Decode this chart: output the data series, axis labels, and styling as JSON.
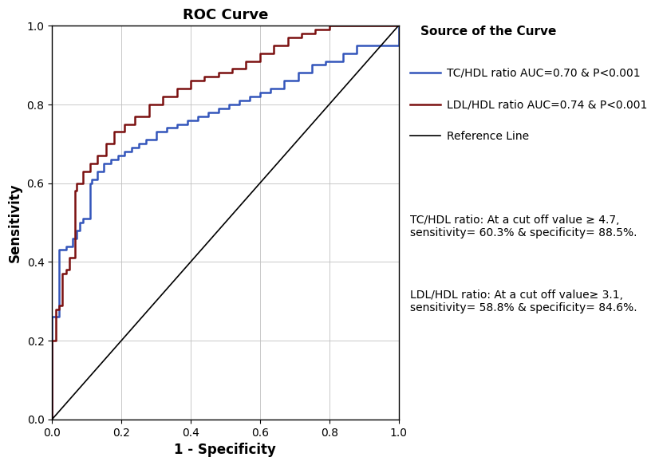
{
  "title": "ROC Curve",
  "xlabel": "1 - Specificity",
  "ylabel": "Sensitivity",
  "title_fontsize": 13,
  "axis_label_fontsize": 12,
  "tick_fontsize": 10,
  "legend_title": "Source of the Curve",
  "legend_title_fontsize": 11,
  "legend_fontsize": 10,
  "tc_hdl_color": "#3355BB",
  "ldl_hdl_color": "#7B1010",
  "ref_color": "#000000",
  "tc_hdl_label": "TC/HDL ratio AUC=0.70 & P<0.001",
  "ldl_hdl_label": "LDL/HDL ratio AUC=0.74 & P<0.001",
  "ref_label": "Reference Line",
  "annotation_tc": "TC/HDL ratio: At a cut off value ≥ 4.7,\nsensitivity= 60.3% & specificity= 88.5%.",
  "annotation_ldl": "LDL/HDL ratio: At a cut off value≥ 3.1,\nsensitivity= 58.8% & specificity= 84.6%.",
  "annotation_fontsize": 10,
  "tc_hdl_fpr": [
    0.0,
    0.0,
    0.02,
    0.02,
    0.04,
    0.04,
    0.06,
    0.06,
    0.07,
    0.07,
    0.08,
    0.08,
    0.09,
    0.09,
    0.11,
    0.11,
    0.115,
    0.115,
    0.13,
    0.13,
    0.15,
    0.15,
    0.17,
    0.17,
    0.19,
    0.19,
    0.21,
    0.21,
    0.23,
    0.23,
    0.25,
    0.25,
    0.27,
    0.27,
    0.3,
    0.3,
    0.33,
    0.33,
    0.36,
    0.36,
    0.39,
    0.39,
    0.42,
    0.42,
    0.45,
    0.45,
    0.48,
    0.48,
    0.51,
    0.51,
    0.54,
    0.54,
    0.57,
    0.57,
    0.6,
    0.6,
    0.63,
    0.63,
    0.67,
    0.67,
    0.71,
    0.71,
    0.75,
    0.75,
    0.79,
    0.79,
    0.84,
    0.84,
    0.88,
    0.88,
    1.0,
    1.0
  ],
  "tc_hdl_tpr": [
    0.0,
    0.26,
    0.26,
    0.43,
    0.43,
    0.44,
    0.44,
    0.46,
    0.46,
    0.48,
    0.48,
    0.5,
    0.5,
    0.51,
    0.51,
    0.6,
    0.6,
    0.61,
    0.61,
    0.63,
    0.63,
    0.65,
    0.65,
    0.66,
    0.66,
    0.67,
    0.67,
    0.68,
    0.68,
    0.69,
    0.69,
    0.7,
    0.7,
    0.71,
    0.71,
    0.73,
    0.73,
    0.74,
    0.74,
    0.75,
    0.75,
    0.76,
    0.76,
    0.77,
    0.77,
    0.78,
    0.78,
    0.79,
    0.79,
    0.8,
    0.8,
    0.81,
    0.81,
    0.82,
    0.82,
    0.83,
    0.83,
    0.84,
    0.84,
    0.86,
    0.86,
    0.88,
    0.88,
    0.9,
    0.9,
    0.91,
    0.91,
    0.93,
    0.93,
    0.95,
    0.95,
    1.0
  ],
  "ldl_hdl_fpr": [
    0.0,
    0.0,
    0.01,
    0.01,
    0.02,
    0.02,
    0.03,
    0.03,
    0.04,
    0.04,
    0.05,
    0.05,
    0.065,
    0.065,
    0.07,
    0.07,
    0.09,
    0.09,
    0.11,
    0.11,
    0.13,
    0.13,
    0.155,
    0.155,
    0.18,
    0.18,
    0.21,
    0.21,
    0.24,
    0.24,
    0.28,
    0.28,
    0.32,
    0.32,
    0.36,
    0.36,
    0.4,
    0.4,
    0.44,
    0.44,
    0.48,
    0.48,
    0.52,
    0.52,
    0.56,
    0.56,
    0.6,
    0.6,
    0.64,
    0.64,
    0.68,
    0.68,
    0.72,
    0.72,
    0.76,
    0.76,
    0.8,
    0.8,
    0.84,
    0.84,
    0.88,
    0.88,
    1.0,
    1.0
  ],
  "ldl_hdl_tpr": [
    0.0,
    0.2,
    0.2,
    0.28,
    0.28,
    0.29,
    0.29,
    0.37,
    0.37,
    0.38,
    0.38,
    0.41,
    0.41,
    0.58,
    0.58,
    0.6,
    0.6,
    0.63,
    0.63,
    0.65,
    0.65,
    0.67,
    0.67,
    0.7,
    0.7,
    0.73,
    0.73,
    0.75,
    0.75,
    0.77,
    0.77,
    0.8,
    0.8,
    0.82,
    0.82,
    0.84,
    0.84,
    0.86,
    0.86,
    0.87,
    0.87,
    0.88,
    0.88,
    0.89,
    0.89,
    0.91,
    0.91,
    0.93,
    0.93,
    0.95,
    0.95,
    0.97,
    0.97,
    0.98,
    0.98,
    0.99,
    0.99,
    1.0,
    1.0,
    1.0,
    1.0,
    1.0,
    1.0,
    1.0
  ],
  "xlim": [
    0.0,
    1.0
  ],
  "ylim": [
    0.0,
    1.0
  ],
  "xticks": [
    0.0,
    0.2,
    0.4,
    0.6,
    0.8,
    1.0
  ],
  "yticks": [
    0.0,
    0.2,
    0.4,
    0.6,
    0.8,
    1.0
  ],
  "grid": true,
  "background_color": "#ffffff",
  "figure_facecolor": "#ffffff",
  "linewidth": 1.8
}
